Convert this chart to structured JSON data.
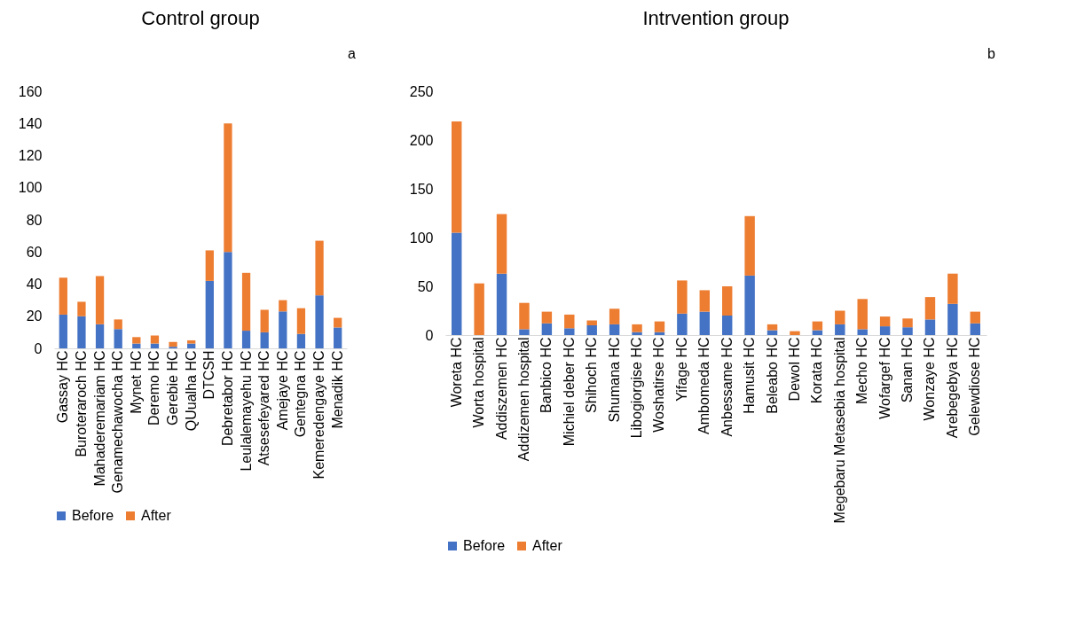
{
  "chart_data": [
    {
      "type": "bar",
      "title": "Control group",
      "annotations": [
        "a"
      ],
      "stacked": true,
      "legend": "bottom",
      "grid": false,
      "categories": [
        "Gassay HC",
        "Buroteraroch HC",
        "Mahaderemariam HC",
        "Genamechawocha HC",
        "Mynet HC",
        "Deremo HC",
        "Gerebie HC",
        "QUualha HC",
        "DTCSH",
        "Debretabor HC",
        "Leulalemayehu HC",
        "Atsesefeyared HC",
        "Amejaye HC",
        "Gentegna HC",
        "Kemeredengaye HC",
        "Menadik HC"
      ],
      "ylim": [
        0,
        160
      ],
      "yticks": [
        0,
        20,
        40,
        60,
        80,
        100,
        120,
        140,
        160
      ],
      "series": [
        {
          "name": "Before",
          "color": "#4472c4",
          "values": [
            21,
            20,
            15,
            12,
            3,
            3,
            1,
            3,
            42,
            60,
            11,
            10,
            23,
            9,
            33,
            13
          ]
        },
        {
          "name": "After",
          "color": "#ed7d31",
          "values": [
            23,
            9,
            30,
            6,
            4,
            5,
            3,
            2,
            19,
            80,
            36,
            14,
            7,
            16,
            34,
            6
          ]
        }
      ]
    },
    {
      "type": "bar",
      "title": "Intrvention group",
      "annotations": [
        "b"
      ],
      "stacked": true,
      "legend": "bottom",
      "grid": false,
      "categories": [
        "Woreta HC",
        "Worta hospital",
        "Addiszemen HC",
        "Addizemen hospital",
        "Banbico HC",
        "Michiel deber HC",
        "Shihoch HC",
        "Shumana HC",
        "Libogiorgise HC",
        "Woshatirse HC",
        "Yifage HC",
        "Ambomeda HC",
        "Anbessame HC",
        "Hamusit HC",
        "Beleabo HC",
        "Dewol HC",
        "Korata HC",
        "Megebaru Metasebia hospital",
        "Mecho HC",
        "Wofargef HC",
        "Sanan HC",
        "Wonzaye HC",
        "Arebegebya HC",
        "Gelewdiose HC"
      ],
      "ylim": [
        0,
        250
      ],
      "yticks": [
        0,
        50,
        100,
        150,
        200,
        250
      ],
      "series": [
        {
          "name": "Before",
          "color": "#4472c4",
          "values": [
            105,
            0,
            63,
            6,
            12,
            7,
            10,
            11,
            3,
            3,
            22,
            24,
            20,
            61,
            5,
            0,
            5,
            11,
            6,
            9,
            8,
            16,
            32,
            12
          ]
        },
        {
          "name": "After",
          "color": "#ed7d31",
          "values": [
            114,
            53,
            61,
            27,
            12,
            14,
            5,
            16,
            8,
            11,
            34,
            22,
            30,
            61,
            6,
            4,
            9,
            14,
            31,
            10,
            9,
            23,
            31,
            12
          ]
        }
      ]
    }
  ]
}
